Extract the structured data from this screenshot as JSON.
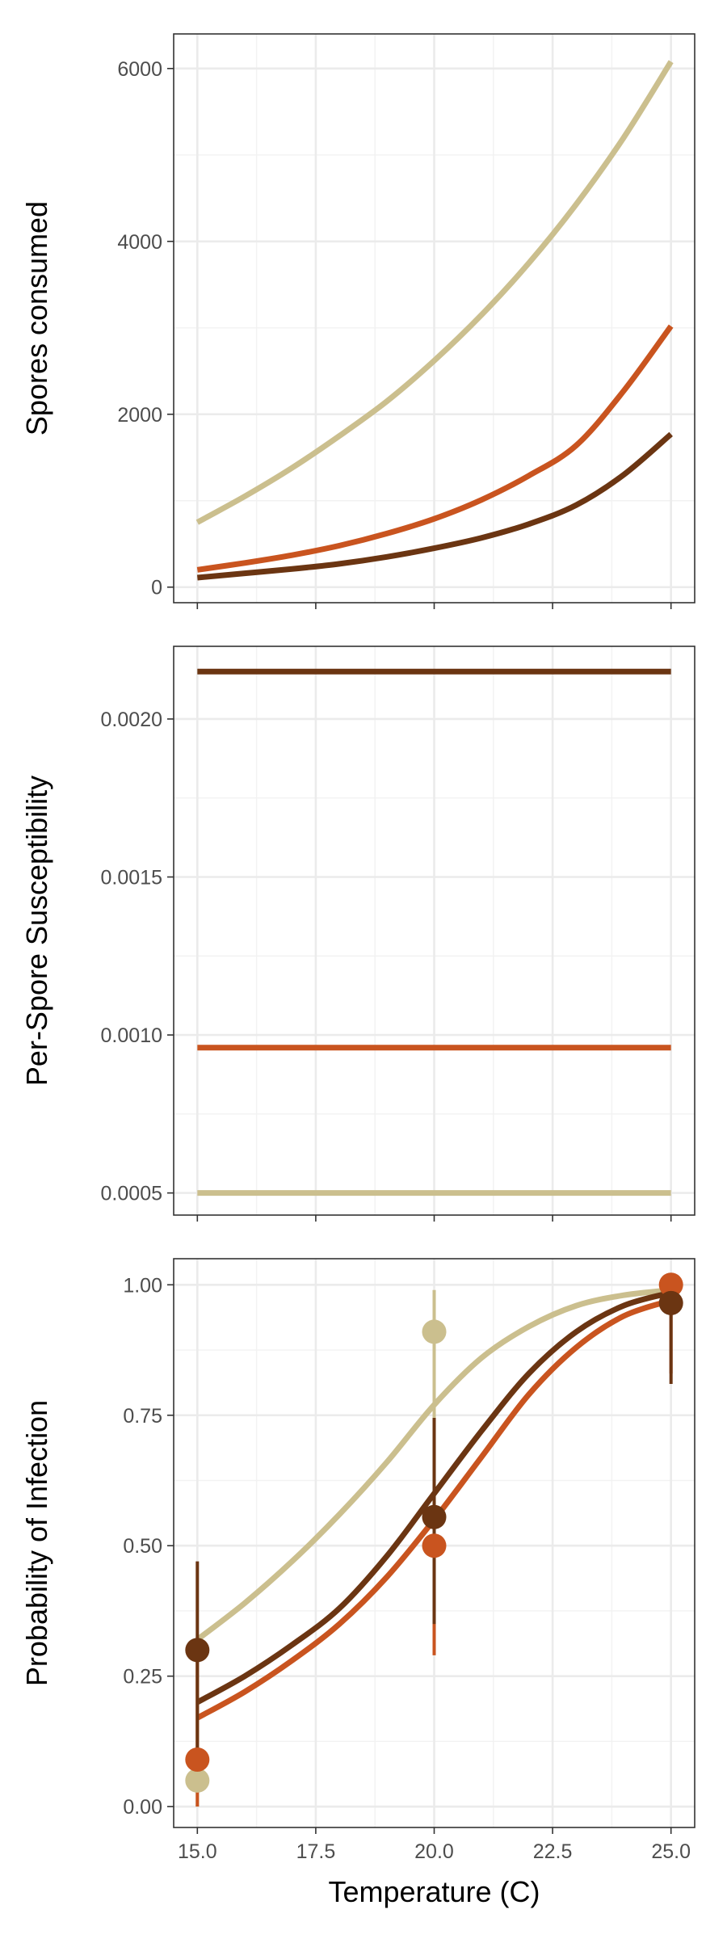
{
  "colors": {
    "tan": "#cbbf8e",
    "orange": "#c9541f",
    "brown": "#6b3512"
  },
  "chart_data": [
    {
      "type": "line",
      "title": "",
      "xlabel": "",
      "ylabel": "Spores consumed",
      "xlim": [
        14.5,
        25.5
      ],
      "ylim": [
        -180,
        6400
      ],
      "xticks": [
        "15.0",
        "17.5",
        "20.0",
        "22.5",
        "25.0"
      ],
      "yticks": [
        "0",
        "2000",
        "4000",
        "6000"
      ],
      "grid": true,
      "legend": "none",
      "series": [
        {
          "color": "#cbbf8e",
          "x": [
            15,
            16,
            17,
            18,
            19,
            20,
            21,
            22,
            23,
            24,
            25
          ],
          "y": [
            750,
            1050,
            1380,
            1750,
            2150,
            2620,
            3150,
            3750,
            4430,
            5200,
            6080
          ]
        },
        {
          "color": "#c9541f",
          "x": [
            15,
            16,
            17,
            18,
            19,
            20,
            21,
            22,
            23,
            24,
            25
          ],
          "y": [
            200,
            280,
            370,
            480,
            620,
            790,
            1010,
            1290,
            1640,
            2270,
            3020
          ]
        },
        {
          "color": "#6b3512",
          "x": [
            15,
            16,
            17,
            18,
            19,
            20,
            21,
            22,
            23,
            24,
            25
          ],
          "y": [
            110,
            160,
            210,
            270,
            350,
            450,
            570,
            730,
            950,
            1300,
            1770
          ]
        }
      ]
    },
    {
      "type": "line",
      "title": "",
      "xlabel": "",
      "ylabel": "Per-Spore Susceptibility",
      "xlim": [
        14.5,
        25.5
      ],
      "ylim": [
        0.00043,
        0.00223
      ],
      "xticks": [
        "15.0",
        "17.5",
        "20.0",
        "22.5",
        "25.0"
      ],
      "yticks": [
        "0.0005",
        "0.0010",
        "0.0015",
        "0.0020"
      ],
      "grid": true,
      "legend": "none",
      "series": [
        {
          "color": "#6b3512",
          "x": [
            15,
            25
          ],
          "y": [
            0.00215,
            0.00215
          ]
        },
        {
          "color": "#c9541f",
          "x": [
            15,
            25
          ],
          "y": [
            0.00096,
            0.00096
          ]
        },
        {
          "color": "#cbbf8e",
          "x": [
            15,
            25
          ],
          "y": [
            0.0005,
            0.0005
          ]
        }
      ]
    },
    {
      "type": "line",
      "title": "",
      "xlabel": "Temperature (C)",
      "ylabel": "Probability of Infection",
      "xlim": [
        14.5,
        25.5
      ],
      "ylim": [
        -0.04,
        1.05
      ],
      "xticks": [
        "15.0",
        "17.5",
        "20.0",
        "22.5",
        "25.0"
      ],
      "yticks": [
        "0.00",
        "0.25",
        "0.50",
        "0.75",
        "1.00"
      ],
      "grid": true,
      "legend": "none",
      "series": [
        {
          "color": "#cbbf8e",
          "x": [
            15,
            16,
            17,
            18,
            19,
            20,
            21,
            22,
            23,
            24,
            25
          ],
          "y": [
            0.32,
            0.39,
            0.47,
            0.56,
            0.66,
            0.77,
            0.86,
            0.92,
            0.96,
            0.98,
            0.99
          ]
        },
        {
          "color": "#6b3512",
          "x": [
            15,
            16,
            17,
            18,
            19,
            20,
            21,
            22,
            23,
            24,
            25
          ],
          "y": [
            0.2,
            0.25,
            0.31,
            0.38,
            0.48,
            0.6,
            0.72,
            0.83,
            0.91,
            0.96,
            0.985
          ]
        },
        {
          "color": "#c9541f",
          "x": [
            15,
            16,
            17,
            18,
            19,
            20,
            21,
            22,
            23,
            24,
            25
          ],
          "y": [
            0.17,
            0.22,
            0.28,
            0.35,
            0.44,
            0.55,
            0.67,
            0.79,
            0.88,
            0.94,
            0.97
          ]
        }
      ],
      "points": [
        {
          "color": "#cbbf8e",
          "x": 15,
          "y": 0.05,
          "ymin": 0.0,
          "ymax": 0.3
        },
        {
          "color": "#c9541f",
          "x": 15,
          "y": 0.09,
          "ymin": 0.0,
          "ymax": 0.3
        },
        {
          "color": "#6b3512",
          "x": 15,
          "y": 0.3,
          "ymin": 0.1,
          "ymax": 0.47
        },
        {
          "color": "#cbbf8e",
          "x": 20,
          "y": 0.91,
          "ymin": 0.73,
          "ymax": 0.99
        },
        {
          "color": "#c9541f",
          "x": 20,
          "y": 0.5,
          "ymin": 0.29,
          "ymax": 0.71
        },
        {
          "color": "#6b3512",
          "x": 20,
          "y": 0.555,
          "ymin": 0.35,
          "ymax": 0.745
        },
        {
          "color": "#c9541f",
          "x": 25,
          "y": 1.0,
          "ymin": 0.83,
          "ymax": 1.0
        },
        {
          "color": "#6b3512",
          "x": 25,
          "y": 0.965,
          "ymin": 0.81,
          "ymax": 1.0
        }
      ]
    }
  ]
}
